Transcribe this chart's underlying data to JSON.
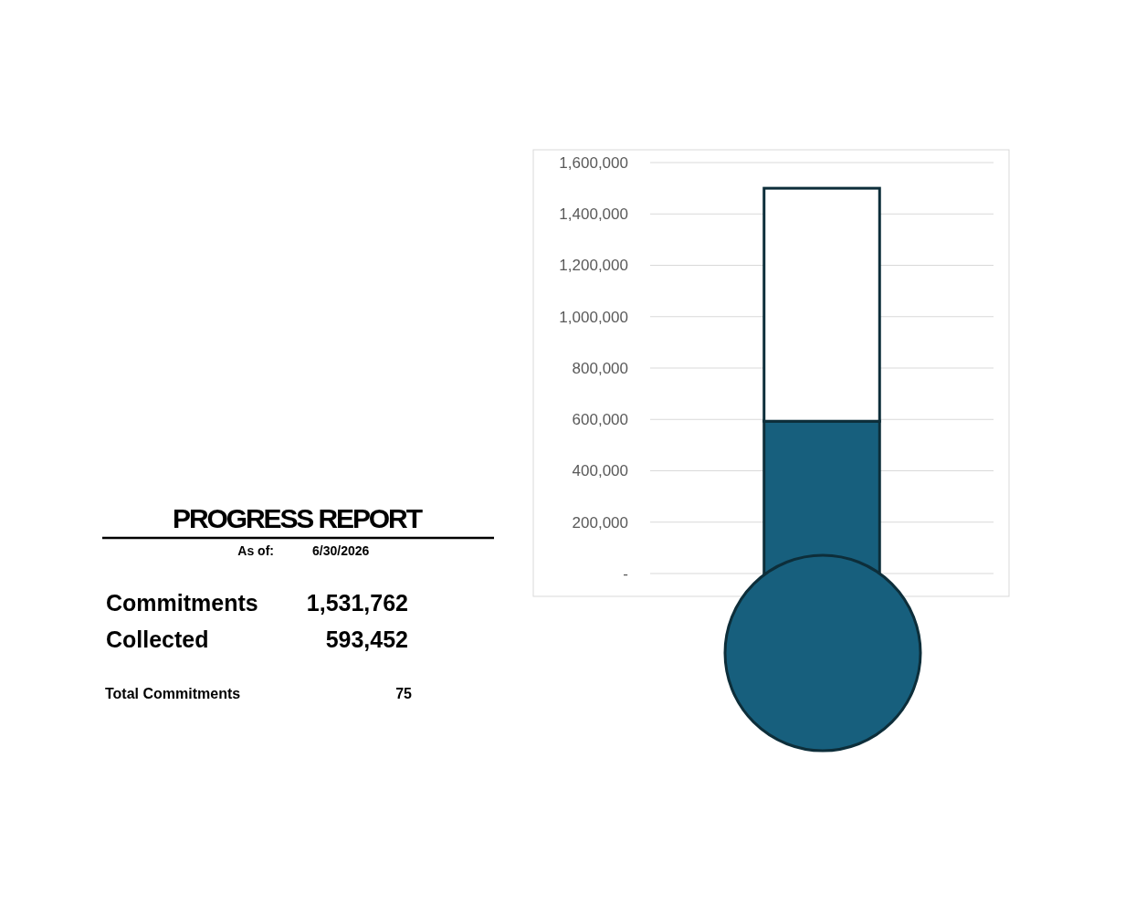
{
  "chart_data": [
    {
      "type": "other",
      "title": "PROGRESS REPORT",
      "annotations": [
        "As of:",
        "6/30/2026",
        "Commitments",
        "1,531,762",
        "Collected",
        "593,452",
        "Total Commitments",
        "75"
      ]
    },
    {
      "type": "bar",
      "stacked": true,
      "categories": [
        null
      ],
      "series": [
        {
          "color": "#175f7d",
          "values": [
            593000
          ]
        },
        {
          "color": "#ffffff",
          "values": [
            907000
          ]
        }
      ],
      "ylim": [
        0,
        1600000
      ],
      "yticks": [
        {
          "value": 0,
          "label": "-"
        },
        {
          "value": 200000,
          "label": "200,000"
        },
        {
          "value": 400000,
          "label": "400,000"
        },
        {
          "value": 600000,
          "label": "600,000"
        },
        {
          "value": 800000,
          "label": "800,000"
        },
        {
          "value": 1000000,
          "label": "1,000,000"
        },
        {
          "value": 1200000,
          "label": "1,200,000"
        },
        {
          "value": 1400000,
          "label": "1,400,000"
        },
        {
          "value": 1600000,
          "label": "1,600,000"
        }
      ],
      "grid": "y"
    }
  ]
}
